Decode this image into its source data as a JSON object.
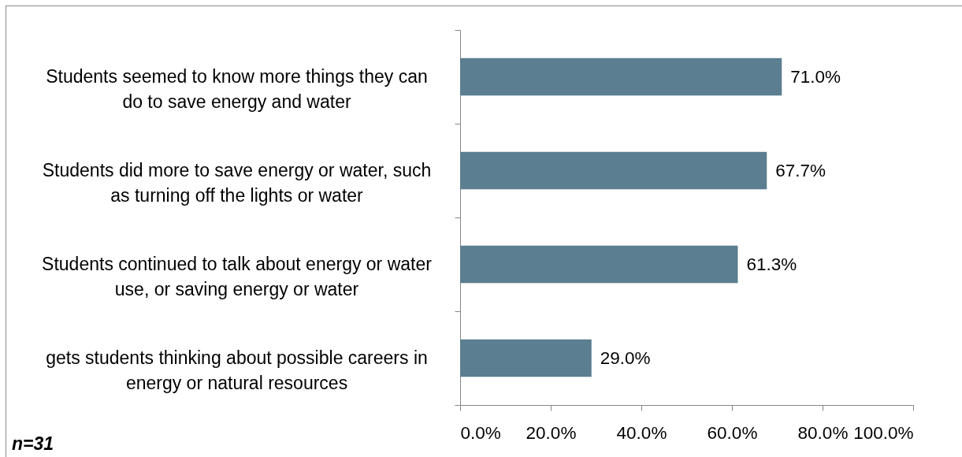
{
  "chart_data": {
    "type": "bar",
    "orientation": "horizontal",
    "categories": [
      "Students seemed to know more things they can do to save energy and water",
      "Students did more to save energy or water, such as turning off the lights or water",
      "Students continued to talk about energy or water use, or saving energy or water",
      "gets students thinking about possible careers in energy or natural resources"
    ],
    "values": [
      71.0,
      67.7,
      61.3,
      29.0
    ],
    "value_labels": [
      "71.0%",
      "67.7%",
      "61.3%",
      "29.0%"
    ],
    "color": "#5b7e90",
    "xlim": [
      0,
      100
    ],
    "xticks": [
      {
        "value": 0,
        "label": "0.0%"
      },
      {
        "value": 20,
        "label": "20.0%"
      },
      {
        "value": 40,
        "label": "40.0%"
      },
      {
        "value": 60,
        "label": "60.0%"
      },
      {
        "value": 80,
        "label": "80.0%"
      },
      {
        "value": 100,
        "label": "100.0%"
      }
    ],
    "annotations": [
      "n=31"
    ]
  }
}
